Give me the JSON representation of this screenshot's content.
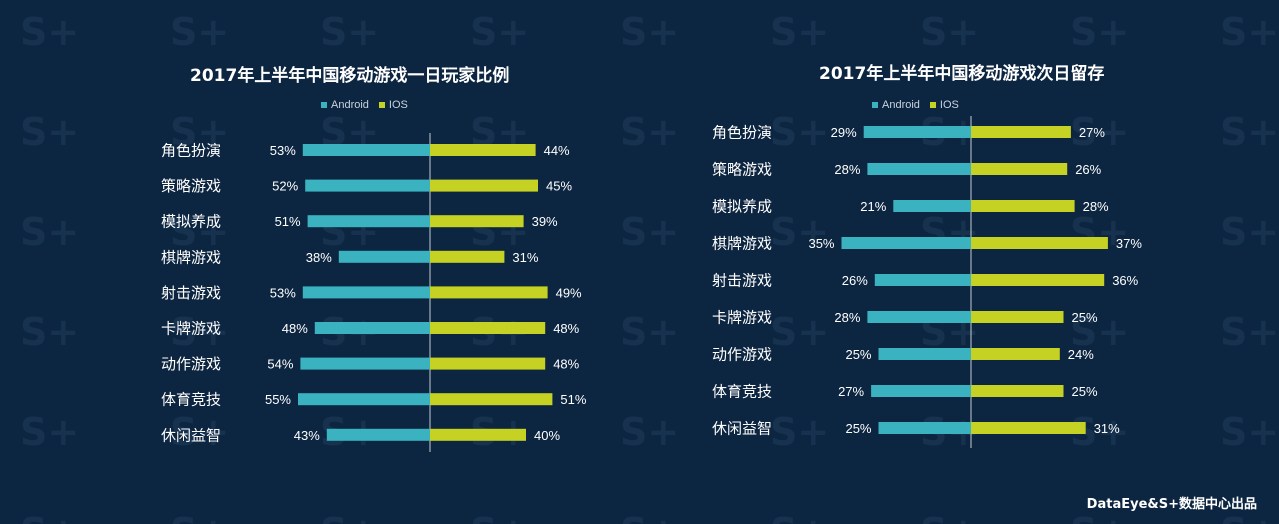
{
  "colors": {
    "android": "#3ab2bf",
    "ios": "#c5d224",
    "axis": "#c8cdd3",
    "text": "#ffffff"
  },
  "footer": "DataEye&S+数据中心出品",
  "chart_data": [
    {
      "type": "bar",
      "title": "2017年上半年中国移动游戏一日玩家比例",
      "legend": [
        "Android",
        "IOS"
      ],
      "categories": [
        "角色扮演",
        "策略游戏",
        "模拟养成",
        "棋牌游戏",
        "射击游戏",
        "卡牌游戏",
        "动作游戏",
        "体育竞技",
        "休闲益智"
      ],
      "series": [
        {
          "name": "Android",
          "values": [
            53,
            52,
            51,
            38,
            53,
            48,
            54,
            55,
            43
          ]
        },
        {
          "name": "IOS",
          "values": [
            44,
            45,
            39,
            31,
            49,
            48,
            48,
            51,
            40
          ]
        }
      ],
      "value_suffix": "%"
    },
    {
      "type": "bar",
      "title": "2017年上半年中国移动游戏次日留存",
      "legend": [
        "Android",
        "IOS"
      ],
      "categories": [
        "角色扮演",
        "策略游戏",
        "模拟养成",
        "棋牌游戏",
        "射击游戏",
        "卡牌游戏",
        "动作游戏",
        "体育竞技",
        "休闲益智"
      ],
      "series": [
        {
          "name": "Android",
          "values": [
            29,
            28,
            21,
            35,
            26,
            28,
            25,
            27,
            25
          ]
        },
        {
          "name": "IOS",
          "values": [
            27,
            26,
            28,
            37,
            36,
            25,
            24,
            25,
            31
          ]
        }
      ],
      "value_suffix": "%"
    }
  ]
}
